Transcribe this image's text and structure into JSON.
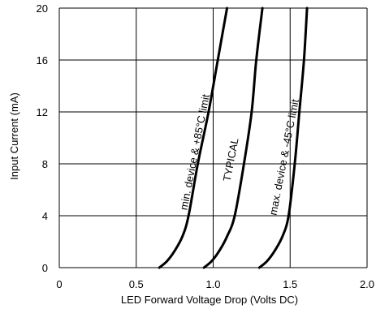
{
  "chart_data": {
    "type": "line",
    "title": "",
    "xlabel": "LED Forward Voltage Drop (Volts DC)",
    "ylabel": "Input Current (mA)",
    "xlim": [
      0,
      2.0
    ],
    "ylim": [
      0,
      20
    ],
    "xticks": [
      0,
      0.5,
      1.0,
      1.5,
      2.0
    ],
    "xtick_labels": [
      "0",
      "0.5",
      "1.0",
      "1.5",
      "2.0"
    ],
    "yticks": [
      0,
      4,
      8,
      12,
      16,
      20
    ],
    "ytick_labels": [
      "0",
      "4",
      "8",
      "12",
      "16",
      "20"
    ],
    "grid": true,
    "legend": "none",
    "colors": {
      "line": "#000000",
      "grid": "#000000",
      "background": "#ffffff"
    },
    "series": [
      {
        "name": "min. device & +85°C limit",
        "points": [
          [
            0.65,
            0
          ],
          [
            0.7,
            0.5
          ],
          [
            0.75,
            1.3
          ],
          [
            0.8,
            2.4
          ],
          [
            0.84,
            4.0
          ],
          [
            0.9,
            8.0
          ],
          [
            0.97,
            12.0
          ],
          [
            1.03,
            16.0
          ],
          [
            1.09,
            20.0
          ]
        ]
      },
      {
        "name": "TYPICAL",
        "points": [
          [
            0.94,
            0
          ],
          [
            0.99,
            0.5
          ],
          [
            1.04,
            1.3
          ],
          [
            1.09,
            2.4
          ],
          [
            1.14,
            4.0
          ],
          [
            1.2,
            8.0
          ],
          [
            1.25,
            12.0
          ],
          [
            1.28,
            16.0
          ],
          [
            1.32,
            20.0
          ]
        ]
      },
      {
        "name": "max. device & -45°C limit",
        "points": [
          [
            1.3,
            0
          ],
          [
            1.35,
            0.5
          ],
          [
            1.4,
            1.3
          ],
          [
            1.45,
            2.4
          ],
          [
            1.49,
            4.0
          ],
          [
            1.53,
            8.0
          ],
          [
            1.56,
            12.0
          ],
          [
            1.59,
            16.0
          ],
          [
            1.61,
            20.0
          ]
        ]
      }
    ]
  }
}
